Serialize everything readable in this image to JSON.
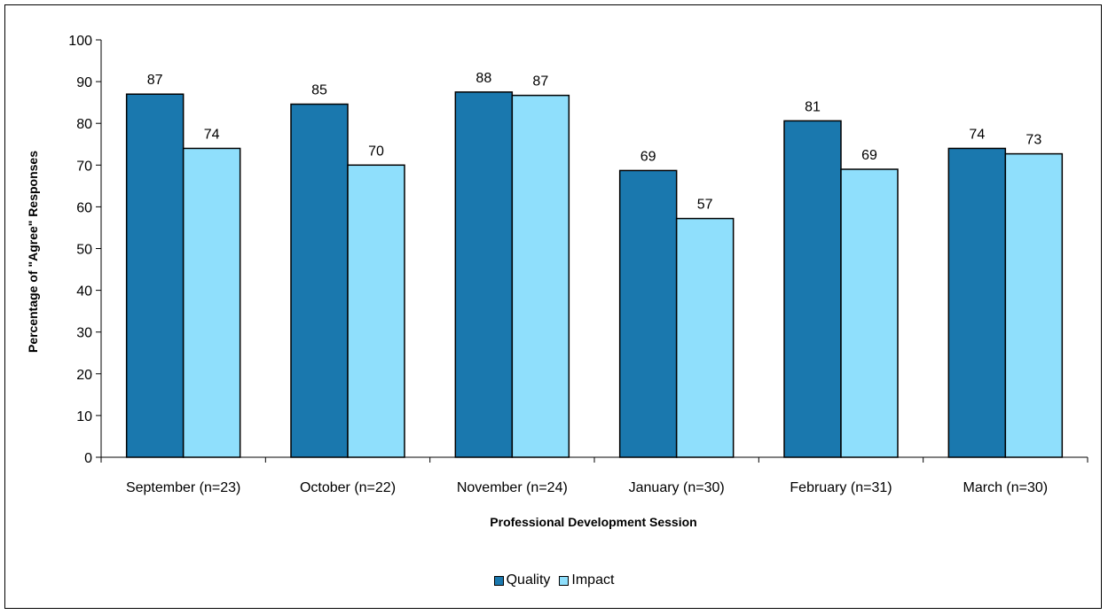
{
  "chart_data": {
    "type": "bar",
    "title": "",
    "xlabel": "Professional Development Session",
    "ylabel": "Percentage of \"Agree\" Responses",
    "ylim": [
      0,
      100
    ],
    "yticks": [
      0,
      10,
      20,
      30,
      40,
      50,
      60,
      70,
      80,
      90,
      100
    ],
    "categories": [
      "September (n=23)",
      "October (n=22)",
      "November (n=24)",
      "January (n=30)",
      "February (n=31)",
      "March (n=30)"
    ],
    "series": [
      {
        "name": "Quality",
        "color": "#1a78ae",
        "values": [
          87,
          84.6,
          87.5,
          68.7,
          80.6,
          74
        ],
        "labels": [
          "87",
          "85",
          "88",
          "69",
          "81",
          "74"
        ]
      },
      {
        "name": "Impact",
        "color": "#8fdffc",
        "values": [
          74,
          70,
          86.7,
          57.2,
          69,
          72.7
        ],
        "labels": [
          "74",
          "70",
          "87",
          "57",
          "69",
          "73"
        ]
      }
    ],
    "grid": false,
    "legend_position": "bottom"
  }
}
